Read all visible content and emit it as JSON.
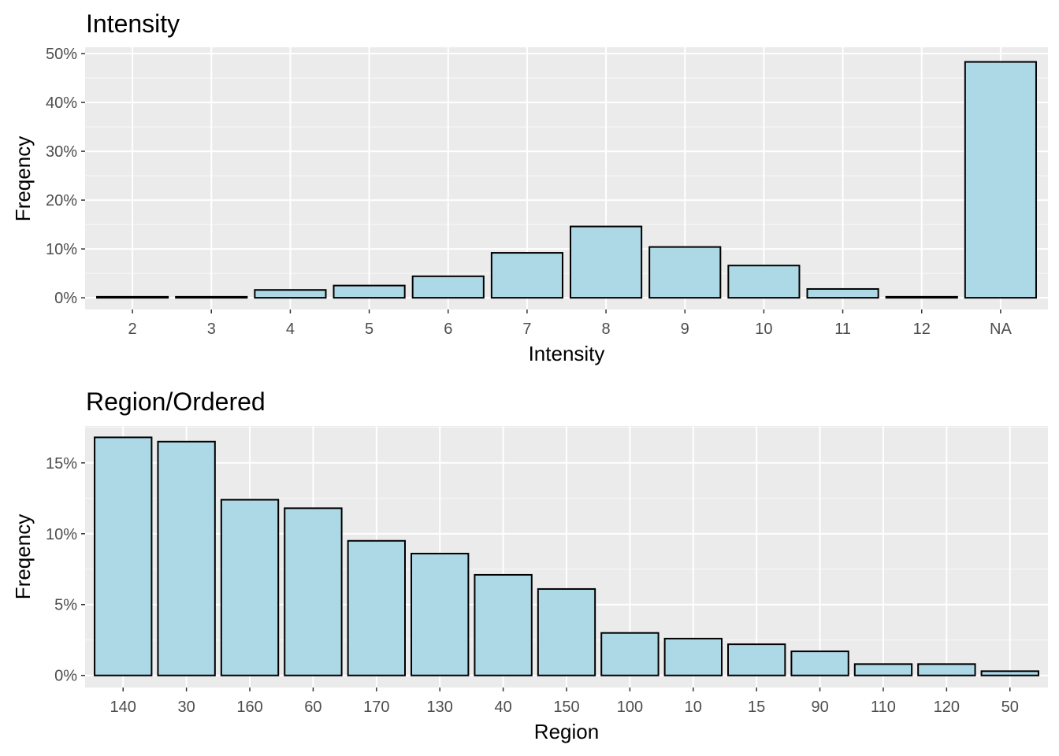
{
  "colors": {
    "bar_fill": "#add8e6",
    "bar_outline": "#000000",
    "panel_bg": "#ebebeb",
    "grid": "#ffffff"
  },
  "chart_data": [
    {
      "type": "bar",
      "title": "Intensity",
      "xlabel": "Intensity",
      "ylabel": "Freqency",
      "categories": [
        "2",
        "3",
        "4",
        "5",
        "6",
        "7",
        "8",
        "9",
        "10",
        "11",
        "12",
        "NA"
      ],
      "values": [
        0.2,
        0.2,
        1.6,
        2.5,
        4.4,
        9.2,
        14.6,
        10.4,
        6.6,
        1.8,
        0.2,
        48.3
      ],
      "y_ticks": [
        0,
        10,
        20,
        30,
        40,
        50
      ],
      "y_tick_labels": [
        "0%",
        "10%",
        "20%",
        "30%",
        "40%",
        "50%"
      ],
      "ylim": [
        -2.4,
        51.3
      ],
      "grid": true,
      "legend": "none"
    },
    {
      "type": "bar",
      "title": "Region/Ordered",
      "xlabel": "Region",
      "ylabel": "Freqency",
      "categories": [
        "140",
        "30",
        "160",
        "60",
        "170",
        "130",
        "40",
        "150",
        "100",
        "10",
        "15",
        "90",
        "110",
        "120",
        "50"
      ],
      "values": [
        16.8,
        16.5,
        12.4,
        11.8,
        9.5,
        8.6,
        7.1,
        6.1,
        3.0,
        2.6,
        2.2,
        1.7,
        0.8,
        0.8,
        0.3
      ],
      "y_ticks": [
        0,
        5,
        10,
        15
      ],
      "y_tick_labels": [
        "0%",
        "5%",
        "10%",
        "15%"
      ],
      "ylim": [
        -0.85,
        17.6
      ],
      "grid": true,
      "legend": "none"
    }
  ]
}
